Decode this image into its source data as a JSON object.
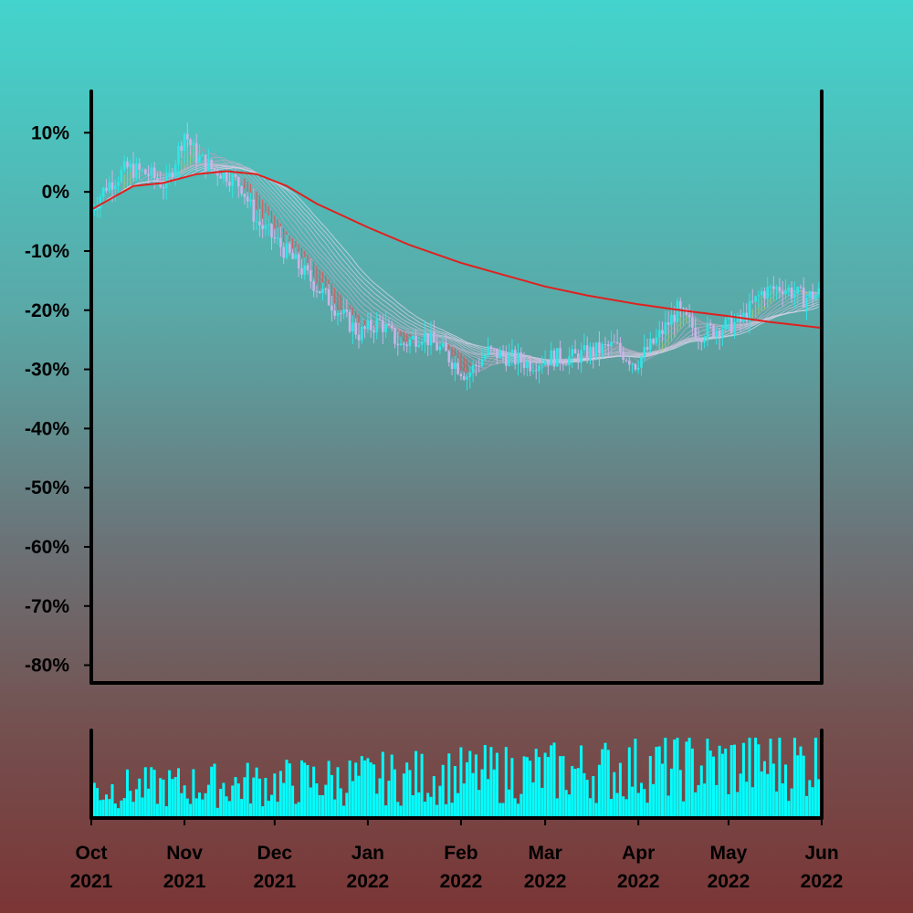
{
  "chart_data": [
    {
      "type": "candlestick",
      "panel": "price",
      "y_unit": "percent change",
      "ylim": [
        -83,
        17
      ],
      "yticks": [
        10,
        0,
        -10,
        -20,
        -30,
        -40,
        -50,
        -60,
        -70,
        -80
      ],
      "ytick_labels": [
        "10%",
        "0%",
        "-10%",
        "-20%",
        "-30%",
        "-40%",
        "-50%",
        "-60%",
        "-70%",
        "-80%"
      ],
      "xlim": [
        "2021-10-01",
        "2022-06-01"
      ],
      "grid": false,
      "legend": "none",
      "close_path": [
        [
          "2021-10-01",
          -3
        ],
        [
          "2021-10-06",
          1
        ],
        [
          "2021-10-13",
          4
        ],
        [
          "2021-10-20",
          3
        ],
        [
          "2021-10-26",
          1
        ],
        [
          "2021-11-01",
          10
        ],
        [
          "2021-11-05",
          6
        ],
        [
          "2021-11-10",
          4
        ],
        [
          "2021-11-15",
          3
        ],
        [
          "2021-11-20",
          1
        ],
        [
          "2021-11-25",
          -5
        ],
        [
          "2021-12-01",
          -8
        ],
        [
          "2021-12-08",
          -12
        ],
        [
          "2021-12-15",
          -16
        ],
        [
          "2021-12-22",
          -20
        ],
        [
          "2021-12-29",
          -24
        ],
        [
          "2022-01-05",
          -22
        ],
        [
          "2022-01-12",
          -26
        ],
        [
          "2022-01-19",
          -24
        ],
        [
          "2022-01-26",
          -27
        ],
        [
          "2022-02-03",
          -31
        ],
        [
          "2022-02-10",
          -27
        ],
        [
          "2022-02-17",
          -28
        ],
        [
          "2022-02-24",
          -29
        ],
        [
          "2022-03-03",
          -28
        ],
        [
          "2022-03-10",
          -28
        ],
        [
          "2022-03-17",
          -27
        ],
        [
          "2022-03-24",
          -26
        ],
        [
          "2022-03-31",
          -29
        ],
        [
          "2022-04-07",
          -25
        ],
        [
          "2022-04-14",
          -20
        ],
        [
          "2022-04-21",
          -24
        ],
        [
          "2022-04-28",
          -23
        ],
        [
          "2022-05-05",
          -22
        ],
        [
          "2022-05-12",
          -17
        ],
        [
          "2022-05-19",
          -16
        ],
        [
          "2022-05-26",
          -18
        ],
        [
          "2022-06-01",
          -17
        ]
      ],
      "moving_average_long": {
        "color": "#e0201e",
        "points": [
          [
            "2021-10-01",
            -3
          ],
          [
            "2021-10-15",
            1
          ],
          [
            "2021-10-25",
            1.5
          ],
          [
            "2021-11-05",
            3
          ],
          [
            "2021-11-15",
            3.5
          ],
          [
            "2021-11-25",
            3
          ],
          [
            "2021-12-05",
            1
          ],
          [
            "2021-12-15",
            -2
          ],
          [
            "2022-01-01",
            -6
          ],
          [
            "2022-01-15",
            -9
          ],
          [
            "2022-02-01",
            -12
          ],
          [
            "2022-02-15",
            -14
          ],
          [
            "2022-03-01",
            -16
          ],
          [
            "2022-03-15",
            -17.5
          ],
          [
            "2022-04-01",
            -19
          ],
          [
            "2022-04-15",
            -20
          ],
          [
            "2022-05-01",
            -21
          ],
          [
            "2022-05-15",
            -22
          ],
          [
            "2022-06-01",
            -23
          ]
        ]
      },
      "colors": {
        "up": "#2ee6e6",
        "down": "#c9b5e8",
        "ribbon_falling": "#e05050",
        "ribbon_rising": "#9ad07a"
      }
    },
    {
      "type": "bar",
      "panel": "volume",
      "color": "#00ffff",
      "xlim": [
        "2021-10-01",
        "2022-06-01"
      ],
      "xtick_labels": [
        [
          "Oct",
          "2021"
        ],
        [
          "Nov",
          "2021"
        ],
        [
          "Dec",
          "2021"
        ],
        [
          "Jan",
          "2022"
        ],
        [
          "Feb",
          "2022"
        ],
        [
          "Mar",
          "2022"
        ],
        [
          "Apr",
          "2022"
        ],
        [
          "May",
          "2022"
        ],
        [
          "Jun",
          "2022"
        ]
      ],
      "xtick_dates": [
        "2021-10-01",
        "2021-11-01",
        "2021-12-01",
        "2022-01-01",
        "2022-02-01",
        "2022-03-01",
        "2022-04-01",
        "2022-05-01",
        "2022-06-01"
      ],
      "relative_volume_range": [
        0.05,
        1.0
      ]
    }
  ]
}
